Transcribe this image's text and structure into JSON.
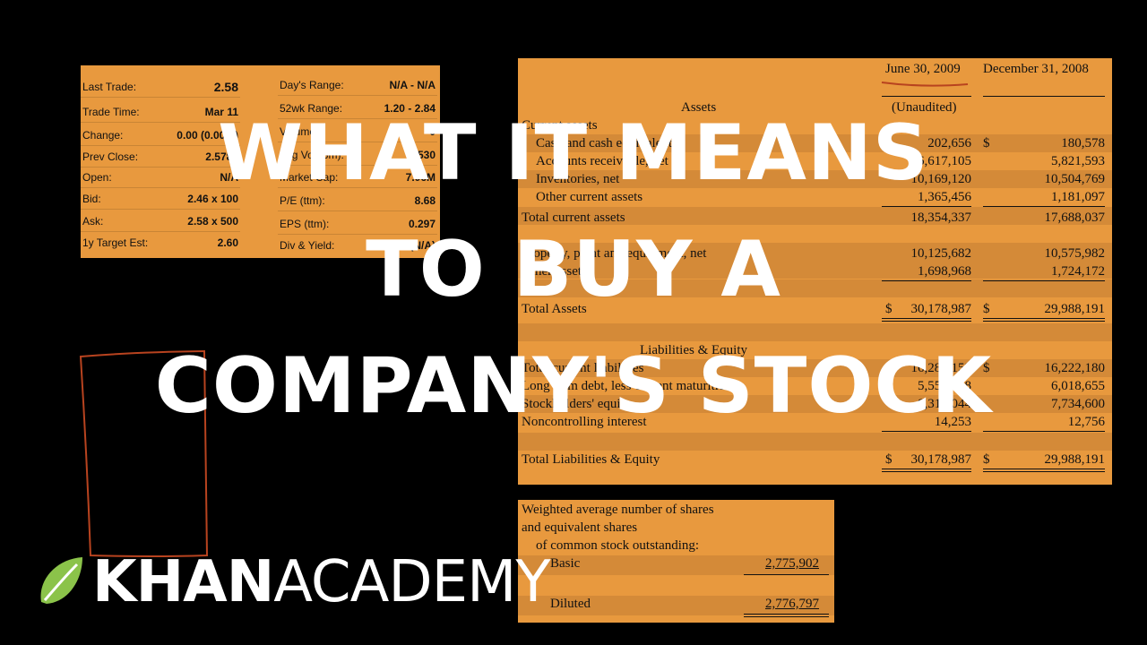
{
  "quote": {
    "left_rows": [
      {
        "label": "Last Trade:",
        "value": "2.58"
      },
      {
        "label": "Trade Time:",
        "value": "Mar 11"
      },
      {
        "label": "Change:",
        "value": "0.00 (0.00%)"
      },
      {
        "label": "Prev Close:",
        "value": "2.5789"
      },
      {
        "label": "Open:",
        "value": "N/A"
      },
      {
        "label": "Bid:",
        "value": "2.46 x 100"
      },
      {
        "label": "Ask:",
        "value": "2.58 x 500"
      },
      {
        "label": "1y Target Est:",
        "value": "2.60"
      }
    ],
    "right_rows": [
      {
        "label": "Day's Range:",
        "value": "N/A - N/A"
      },
      {
        "label": "52wk Range:",
        "value": "1.20 - 2.84"
      },
      {
        "label": "Volume:",
        "value": "0"
      },
      {
        "label": "Avg Vol (3m):",
        "value": "3,530"
      },
      {
        "label": "Market Cap:",
        "value": "7.06M"
      },
      {
        "label": "P/E (ttm):",
        "value": "8.68"
      },
      {
        "label": "EPS (ttm):",
        "value": "0.297"
      },
      {
        "label": "Div & Yield:",
        "value": "N/A (N/A)"
      }
    ]
  },
  "balance_sheet": {
    "col_header_1": "June 30, 2009",
    "col_header_2": "December 31, 2008",
    "unaudited": "(Unaudited)",
    "assets_heading": "Assets",
    "current_assets_heading": "Current assets",
    "liabilities_heading": "Liabilities & Equity",
    "dollar": "$",
    "rows": [
      {
        "label": "Cash and cash equivalents",
        "v1": "202,656",
        "v2": "180,578"
      },
      {
        "label": "Accounts receivable, net",
        "v1": "6,617,105",
        "v2": "5,821,593"
      },
      {
        "label": "Inventories, net",
        "v1": "10,169,120",
        "v2": "10,504,769"
      },
      {
        "label": "Other current assets",
        "v1": "1,365,456",
        "v2": "1,181,097"
      },
      {
        "label": "Total current assets",
        "v1": "18,354,337",
        "v2": "17,688,037"
      },
      {
        "label": "Property, plant and equipment, net",
        "v1": "10,125,682",
        "v2": "10,575,982"
      },
      {
        "label": "Other assets",
        "v1": "1,698,968",
        "v2": "1,724,172"
      },
      {
        "label": "Total Assets",
        "v1": "30,178,987",
        "v2": "29,988,191"
      },
      {
        "label": "Total current liabilities",
        "v1": "16,289,152",
        "v2": "16,222,180"
      },
      {
        "label": "Long term debt, less current maturities",
        "v1": "5,559,538",
        "v2": "6,018,655"
      },
      {
        "label": "Stockholders' equity",
        "v1": "8,316,044",
        "v2": "7,734,600"
      },
      {
        "label": "Noncontrolling interest",
        "v1": "14,253",
        "v2": "12,756"
      },
      {
        "label": "Total Liabilities & Equity",
        "v1": "30,178,987",
        "v2": "29,988,191"
      }
    ]
  },
  "shares": {
    "line1": "Weighted average number of shares",
    "line2": "and equivalent shares",
    "line3": "of common stock outstanding:",
    "basic_label": "Basic",
    "basic_value": "2,775,902",
    "diluted_label": "Diluted",
    "diluted_value": "2,776,797"
  },
  "title": {
    "line1": "WHAT IT MEANS",
    "line2": "TO BUY A",
    "line3": "COMPANY'S STOCK"
  },
  "logo": {
    "bold": "KHAN",
    "light": "ACADEMY"
  },
  "colors": {
    "panel": "#e8993e",
    "stripe": "#d48a38",
    "annotation": "#b8431f",
    "leaf": "#8bc34a"
  }
}
